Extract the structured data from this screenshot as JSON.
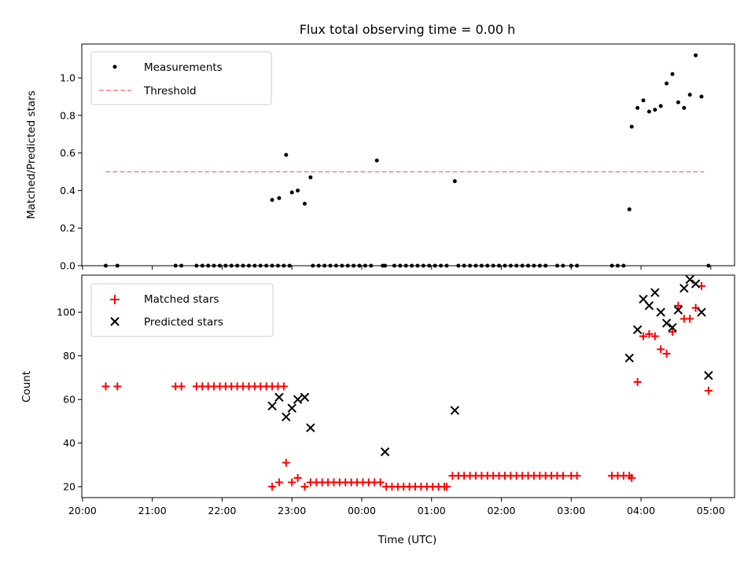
{
  "chart_data": [
    {
      "type": "scatter",
      "title": "Flux total observing time = 0.00 h",
      "xlabel": "",
      "ylabel": "Matched/Predicted stars",
      "ylim": [
        0,
        1.18
      ],
      "yticks": [
        "0.0",
        "0.2",
        "0.4",
        "0.6",
        "0.8",
        "1.0"
      ],
      "ytick_values": [
        0,
        0.2,
        0.4,
        0.6,
        0.8,
        1.0
      ],
      "xlim_hours": [
        19.99,
        29.34
      ],
      "legend": {
        "placement": "upper-left",
        "entries": [
          "Measurements",
          "Threshold"
        ]
      },
      "threshold": {
        "name": "Threshold",
        "y": 0.5,
        "x_range": [
          "20:20",
          "04:54"
        ],
        "color": "#f08080",
        "style": "dashed"
      },
      "series": [
        {
          "name": "Measurements",
          "marker": "dot",
          "color": "#000000",
          "x": [
            "20:20",
            "20:30",
            "21:20",
            "21:25",
            "21:38",
            "21:43",
            "21:48",
            "21:53",
            "21:58",
            "22:03",
            "22:08",
            "22:13",
            "22:18",
            "22:23",
            "22:28",
            "22:33",
            "22:38",
            "22:43",
            "22:48",
            "22:53",
            "22:58",
            "22:43",
            "22:49",
            "22:55",
            "23:00",
            "23:05",
            "23:11",
            "23:16",
            "23:18",
            "23:23",
            "23:28",
            "23:33",
            "23:38",
            "23:43",
            "23:48",
            "23:53",
            "23:58",
            "00:03",
            "00:08",
            "00:13",
            "00:18",
            "00:20",
            "00:28",
            "00:33",
            "00:38",
            "00:43",
            "00:48",
            "00:53",
            "00:58",
            "01:03",
            "01:08",
            "01:13",
            "01:20",
            "01:23",
            "01:28",
            "01:33",
            "01:38",
            "01:43",
            "01:48",
            "01:53",
            "01:58",
            "02:03",
            "02:08",
            "02:13",
            "02:18",
            "02:23",
            "02:28",
            "02:33",
            "02:38",
            "02:48",
            "02:53",
            "03:00",
            "03:05",
            "03:35",
            "03:40",
            "03:45",
            "03:50",
            "03:52",
            "03:57",
            "04:02",
            "04:07",
            "04:12",
            "04:17",
            "04:22",
            "04:27",
            "04:32",
            "04:37",
            "04:42",
            "04:47",
            "04:52",
            "04:58"
          ],
          "y": [
            0,
            0,
            0,
            0,
            0,
            0,
            0,
            0,
            0,
            0,
            0,
            0,
            0,
            0,
            0,
            0,
            0,
            0,
            0,
            0,
            0,
            0.35,
            0.36,
            0.59,
            0.39,
            0.4,
            0.33,
            0.47,
            0,
            0,
            0,
            0,
            0,
            0,
            0,
            0,
            0,
            0,
            0,
            0.56,
            0,
            0,
            0,
            0,
            0,
            0,
            0,
            0,
            0,
            0,
            0,
            0,
            0.45,
            0,
            0,
            0,
            0,
            0,
            0,
            0,
            0,
            0,
            0,
            0,
            0,
            0,
            0,
            0,
            0,
            0,
            0,
            0,
            0,
            0,
            0,
            0,
            0.3,
            0.74,
            0.84,
            0.88,
            0.82,
            0.83,
            0.85,
            0.97,
            1.02,
            0.87,
            0.84,
            0.91,
            1.12,
            0.9,
            0
          ]
        }
      ]
    },
    {
      "type": "scatter",
      "title": "",
      "xlabel": "Time (UTC)",
      "ylabel": "Count",
      "ylim": [
        15,
        117
      ],
      "yticks": [
        "20",
        "40",
        "60",
        "80",
        "100"
      ],
      "ytick_values": [
        20,
        40,
        60,
        80,
        100
      ],
      "xlim_hours": [
        19.99,
        29.34
      ],
      "xticks": [
        "20:00",
        "21:00",
        "22:00",
        "23:00",
        "00:00",
        "01:00",
        "02:00",
        "03:00",
        "04:00",
        "05:00"
      ],
      "xtick_hours": [
        20,
        21,
        22,
        23,
        24,
        25,
        26,
        27,
        28,
        29
      ],
      "legend": {
        "placement": "upper-left",
        "entries": [
          "Matched stars",
          "Predicted stars"
        ]
      },
      "series": [
        {
          "name": "Matched stars",
          "marker": "plus",
          "color": "#ff0000",
          "x": [
            "20:20",
            "20:30",
            "21:20",
            "21:25",
            "21:38",
            "21:43",
            "21:48",
            "21:53",
            "21:58",
            "22:03",
            "22:08",
            "22:13",
            "22:18",
            "22:23",
            "22:28",
            "22:33",
            "22:38",
            "22:43",
            "22:48",
            "22:53",
            "22:43",
            "22:49",
            "22:55",
            "23:00",
            "23:05",
            "23:11",
            "23:16",
            "23:21",
            "23:26",
            "23:31",
            "23:36",
            "23:41",
            "23:46",
            "23:51",
            "23:56",
            "00:01",
            "00:06",
            "00:11",
            "00:16",
            "00:21",
            "00:26",
            "00:31",
            "00:36",
            "00:41",
            "00:46",
            "00:51",
            "00:56",
            "01:01",
            "01:06",
            "01:11",
            "01:13",
            "01:18",
            "01:23",
            "01:28",
            "01:33",
            "01:38",
            "01:43",
            "01:48",
            "01:53",
            "01:58",
            "02:03",
            "02:08",
            "02:13",
            "02:18",
            "02:23",
            "02:28",
            "02:33",
            "02:38",
            "02:43",
            "02:48",
            "02:53",
            "03:00",
            "03:05",
            "03:35",
            "03:40",
            "03:45",
            "03:50",
            "03:52",
            "03:57",
            "04:02",
            "04:07",
            "04:12",
            "04:17",
            "04:22",
            "04:27",
            "04:32",
            "04:37",
            "04:42",
            "04:47",
            "04:52",
            "04:58"
          ],
          "y": [
            66,
            66,
            66,
            66,
            66,
            66,
            66,
            66,
            66,
            66,
            66,
            66,
            66,
            66,
            66,
            66,
            66,
            66,
            66,
            66,
            20,
            22,
            31,
            22,
            24,
            20,
            22,
            22,
            22,
            22,
            22,
            22,
            22,
            22,
            22,
            22,
            22,
            22,
            22,
            20,
            20,
            20,
            20,
            20,
            20,
            20,
            20,
            20,
            20,
            20,
            20,
            25,
            25,
            25,
            25,
            25,
            25,
            25,
            25,
            25,
            25,
            25,
            25,
            25,
            25,
            25,
            25,
            25,
            25,
            25,
            25,
            25,
            25,
            25,
            25,
            25,
            25,
            24,
            68,
            89,
            90,
            89,
            83,
            81,
            91,
            103,
            97,
            97,
            102,
            112,
            64
          ]
        },
        {
          "name": "Predicted stars",
          "marker": "x",
          "color": "#000000",
          "x": [
            "22:43",
            "22:49",
            "22:55",
            "23:00",
            "23:05",
            "23:11",
            "23:16",
            "00:20",
            "01:20",
            "03:50",
            "03:57",
            "04:02",
            "04:07",
            "04:12",
            "04:17",
            "04:22",
            "04:27",
            "04:32",
            "04:37",
            "04:42",
            "04:47",
            "04:52",
            "04:58"
          ],
          "y": [
            57,
            61,
            52,
            56,
            60,
            61,
            47,
            36,
            55,
            79,
            92,
            106,
            103,
            109,
            100,
            95,
            93,
            101,
            111,
            115,
            113,
            100,
            71
          ]
        }
      ]
    }
  ]
}
